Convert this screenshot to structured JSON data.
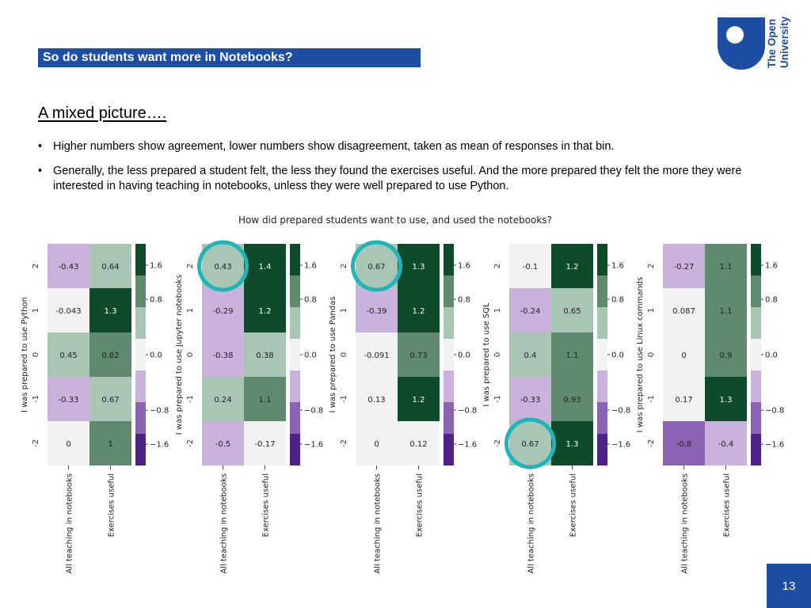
{
  "slide": {
    "title": "So do students want more in Notebooks?",
    "logo_text": [
      "The Open",
      "University"
    ],
    "subtitle": "A mixed picture….",
    "bullets": [
      "Higher numbers show agreement, lower numbers show disagreement, taken as mean of responses in that bin.",
      "Generally, the less prepared a student felt, the less they found the exercises useful. And the more prepared they felt the more they were interested in having teaching in notebooks, unless they were well prepared to use Python."
    ],
    "page_number": "13"
  },
  "colors": {
    "brand_blue": "#1e4ea4",
    "highlight_ring": "#1fb5b8",
    "colorbar": [
      "#0f4a2a",
      "#5f8a6e",
      "#a9c6b4",
      "#f2f2f2",
      "#c9b2dc",
      "#8b63b3",
      "#4f2385"
    ]
  },
  "chart_data": {
    "type": "heatmap",
    "title": "How did prepared students want to use, and used the notebooks?",
    "colorbar": {
      "ticks": [
        1.6,
        0.8,
        0.0,
        -0.8,
        -1.6
      ],
      "tick_labels": [
        "1.6",
        "0.8",
        "0.0",
        "−0.8",
        "−1.6"
      ],
      "range": [
        -1.6,
        1.6
      ]
    },
    "x_categories": [
      "All teaching in notebooks",
      "Exercises useful"
    ],
    "y_categories": [
      "2",
      "1",
      "0",
      "-1",
      "-2"
    ],
    "panels": [
      {
        "ylabel": "I was prepared to use Python",
        "values": [
          [
            -0.43,
            0.64
          ],
          [
            -0.043,
            1.3
          ],
          [
            0.45,
            0.82
          ],
          [
            -0.33,
            0.67
          ],
          [
            0,
            1
          ]
        ],
        "labels": [
          [
            "-0.43",
            "0.64"
          ],
          [
            "-0.043",
            "1.3"
          ],
          [
            "0.45",
            "0.82"
          ],
          [
            "-0.33",
            "0.67"
          ],
          [
            "0",
            "1"
          ]
        ],
        "highlighted_cells": []
      },
      {
        "ylabel": "I was prepared to use Jupyter notebooks",
        "values": [
          [
            0.43,
            1.4
          ],
          [
            -0.29,
            1.2
          ],
          [
            -0.38,
            0.38
          ],
          [
            0.24,
            1.1
          ],
          [
            -0.5,
            -0.17
          ]
        ],
        "labels": [
          [
            "0.43",
            "1.4"
          ],
          [
            "-0.29",
            "1.2"
          ],
          [
            "-0.38",
            "0.38"
          ],
          [
            "0.24",
            "1.1"
          ],
          [
            "-0.5",
            "-0.17"
          ]
        ],
        "highlighted_cells": [
          [
            0,
            0
          ]
        ]
      },
      {
        "ylabel": "I was prepared to use Pandas",
        "values": [
          [
            0.67,
            1.3
          ],
          [
            -0.39,
            1.2
          ],
          [
            -0.091,
            0.73
          ],
          [
            0.13,
            1.2
          ],
          [
            0,
            0.12
          ]
        ],
        "labels": [
          [
            "0.67",
            "1.3"
          ],
          [
            "-0.39",
            "1.2"
          ],
          [
            "-0.091",
            "0.73"
          ],
          [
            "0.13",
            "1.2"
          ],
          [
            "0",
            "0.12"
          ]
        ],
        "highlighted_cells": [
          [
            0,
            0
          ]
        ]
      },
      {
        "ylabel": "I was prepared to use SQL",
        "values": [
          [
            -0.1,
            1.2
          ],
          [
            -0.24,
            0.65
          ],
          [
            0.4,
            1.1
          ],
          [
            -0.33,
            0.93
          ],
          [
            0.67,
            1.3
          ]
        ],
        "labels": [
          [
            "-0.1",
            "1.2"
          ],
          [
            "-0.24",
            "0.65"
          ],
          [
            "0.4",
            "1.1"
          ],
          [
            "-0.33",
            "0.93"
          ],
          [
            "0.67",
            "1.3"
          ]
        ],
        "highlighted_cells": [
          [
            4,
            0
          ]
        ]
      },
      {
        "ylabel": "I was prepared to use Linux commands",
        "values": [
          [
            -0.27,
            1.1
          ],
          [
            0.087,
            1.1
          ],
          [
            0,
            0.9
          ],
          [
            0.17,
            1.3
          ],
          [
            -0.8,
            -0.4
          ]
        ],
        "labels": [
          [
            "-0.27",
            "1.1"
          ],
          [
            "0.087",
            "1.1"
          ],
          [
            "0",
            "0.9"
          ],
          [
            "0.17",
            "1.3"
          ],
          [
            "-0.8",
            "-0.4"
          ]
        ],
        "highlighted_cells": []
      }
    ]
  }
}
